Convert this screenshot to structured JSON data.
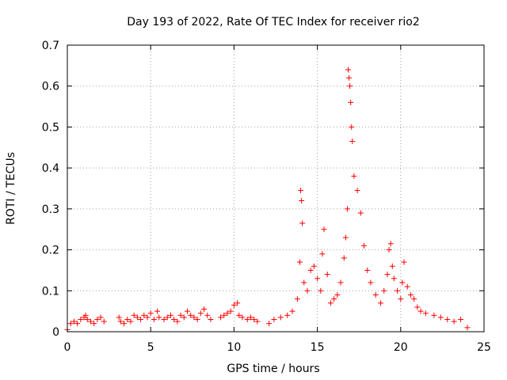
{
  "chart_data": {
    "type": "scatter",
    "title": "Day 193 of 2022, Rate Of TEC Index for receiver rio2",
    "xlabel": "GPS time / hours",
    "ylabel": "ROTI / TECUs",
    "xlim": [
      0,
      25
    ],
    "ylim": [
      0,
      0.7
    ],
    "xticks": [
      0,
      5,
      10,
      15,
      20,
      25
    ],
    "xtick_labels": [
      "0",
      "5",
      "10",
      "15",
      "20",
      "25"
    ],
    "yticks": [
      0,
      0.1,
      0.2,
      0.3,
      0.4,
      0.5,
      0.6,
      0.7
    ],
    "ytick_labels": [
      "0",
      "0.1",
      "0.2",
      "0.3",
      "0.4",
      "0.5",
      "0.6",
      "0.7"
    ],
    "grid": true,
    "marker": "+",
    "color": "#ff0000",
    "series": [
      {
        "name": "rio2",
        "x": [
          0.0,
          0.2,
          0.4,
          0.6,
          0.8,
          1.0,
          1.1,
          1.2,
          1.4,
          1.6,
          1.8,
          2.0,
          2.2,
          3.1,
          3.2,
          3.4,
          3.6,
          3.8,
          4.0,
          4.2,
          4.4,
          4.6,
          4.8,
          5.0,
          5.2,
          5.4,
          5.5,
          5.8,
          6.0,
          6.2,
          6.4,
          6.6,
          6.8,
          7.0,
          7.2,
          7.4,
          7.6,
          7.8,
          8.0,
          8.2,
          8.4,
          8.6,
          9.2,
          9.4,
          9.6,
          9.8,
          10.0,
          10.2,
          10.3,
          10.5,
          10.8,
          11.0,
          11.2,
          11.4,
          12.1,
          12.4,
          12.8,
          13.2,
          13.5,
          13.8,
          13.95,
          14.0,
          14.05,
          14.1,
          14.2,
          14.4,
          14.6,
          14.8,
          15.0,
          15.2,
          15.3,
          15.4,
          15.6,
          15.8,
          16.0,
          16.2,
          16.4,
          16.6,
          16.7,
          16.8,
          16.85,
          16.9,
          16.95,
          17.0,
          17.05,
          17.1,
          17.2,
          17.4,
          17.6,
          17.8,
          18.0,
          18.2,
          18.5,
          18.8,
          19.0,
          19.2,
          19.3,
          19.4,
          19.5,
          19.6,
          19.8,
          20.0,
          20.1,
          20.2,
          20.4,
          20.6,
          20.8,
          21.0,
          21.2,
          21.5,
          22.0,
          22.4,
          22.8,
          23.2,
          23.6,
          24.0
        ],
        "y": [
          0.005,
          0.02,
          0.025,
          0.02,
          0.03,
          0.035,
          0.04,
          0.03,
          0.025,
          0.02,
          0.03,
          0.035,
          0.025,
          0.035,
          0.025,
          0.02,
          0.03,
          0.025,
          0.04,
          0.035,
          0.03,
          0.04,
          0.035,
          0.045,
          0.03,
          0.05,
          0.035,
          0.03,
          0.035,
          0.04,
          0.03,
          0.025,
          0.04,
          0.035,
          0.05,
          0.04,
          0.035,
          0.03,
          0.045,
          0.055,
          0.04,
          0.03,
          0.035,
          0.04,
          0.045,
          0.05,
          0.065,
          0.07,
          0.04,
          0.035,
          0.03,
          0.035,
          0.03,
          0.025,
          0.02,
          0.03,
          0.035,
          0.04,
          0.05,
          0.08,
          0.17,
          0.345,
          0.32,
          0.265,
          0.12,
          0.1,
          0.15,
          0.16,
          0.13,
          0.1,
          0.19,
          0.25,
          0.14,
          0.07,
          0.08,
          0.09,
          0.12,
          0.18,
          0.23,
          0.3,
          0.64,
          0.62,
          0.6,
          0.56,
          0.5,
          0.465,
          0.38,
          0.345,
          0.29,
          0.21,
          0.15,
          0.12,
          0.09,
          0.07,
          0.1,
          0.14,
          0.2,
          0.215,
          0.16,
          0.13,
          0.1,
          0.08,
          0.12,
          0.17,
          0.11,
          0.09,
          0.08,
          0.06,
          0.05,
          0.045,
          0.04,
          0.035,
          0.03,
          0.025,
          0.03,
          0.01
        ]
      }
    ]
  }
}
